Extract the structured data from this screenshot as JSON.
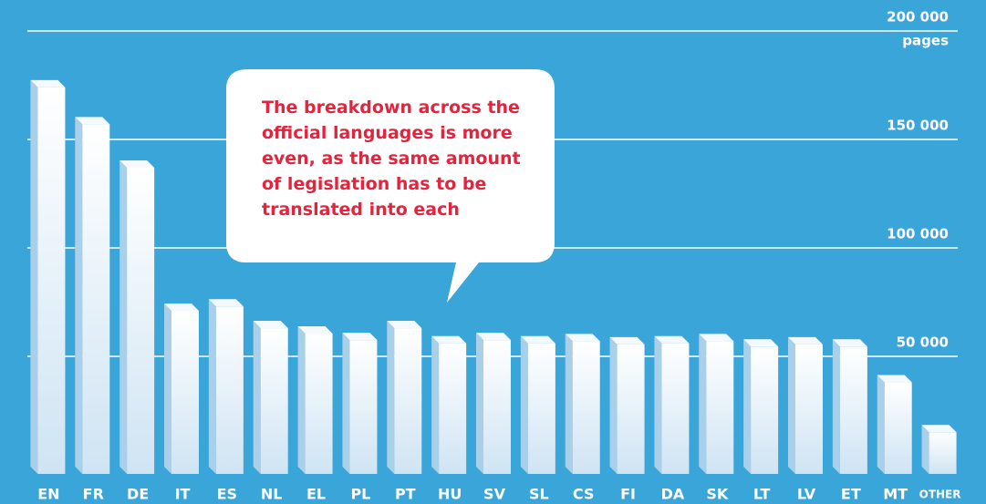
{
  "chart_data": {
    "type": "bar3d",
    "y_axis_label": "pages",
    "annotation": "The breakdown across the official languages is more even, as the same amount of legislation has to be translated into each",
    "categories": [
      "EN",
      "FR",
      "DE",
      "IT",
      "ES",
      "NL",
      "EL",
      "PL",
      "PT",
      "HU",
      "SV",
      "SL",
      "CS",
      "FI",
      "DA",
      "SK",
      "LT",
      "LV",
      "ET",
      "MT",
      "OTHER"
    ],
    "values": [
      174000,
      157000,
      137000,
      71000,
      73000,
      63000,
      60500,
      57500,
      63000,
      56000,
      57500,
      56000,
      57000,
      55500,
      56000,
      57000,
      54500,
      55500,
      54500,
      38000,
      15000
    ],
    "color": "#e6f2fb",
    "ylim": [
      0,
      200000
    ],
    "yticks": [
      {
        "value": 50000,
        "label": "50 000"
      },
      {
        "value": 100000,
        "label": "100 000"
      },
      {
        "value": 150000,
        "label": "150 000"
      },
      {
        "value": 200000,
        "label": "200 000"
      }
    ],
    "grid": true
  }
}
